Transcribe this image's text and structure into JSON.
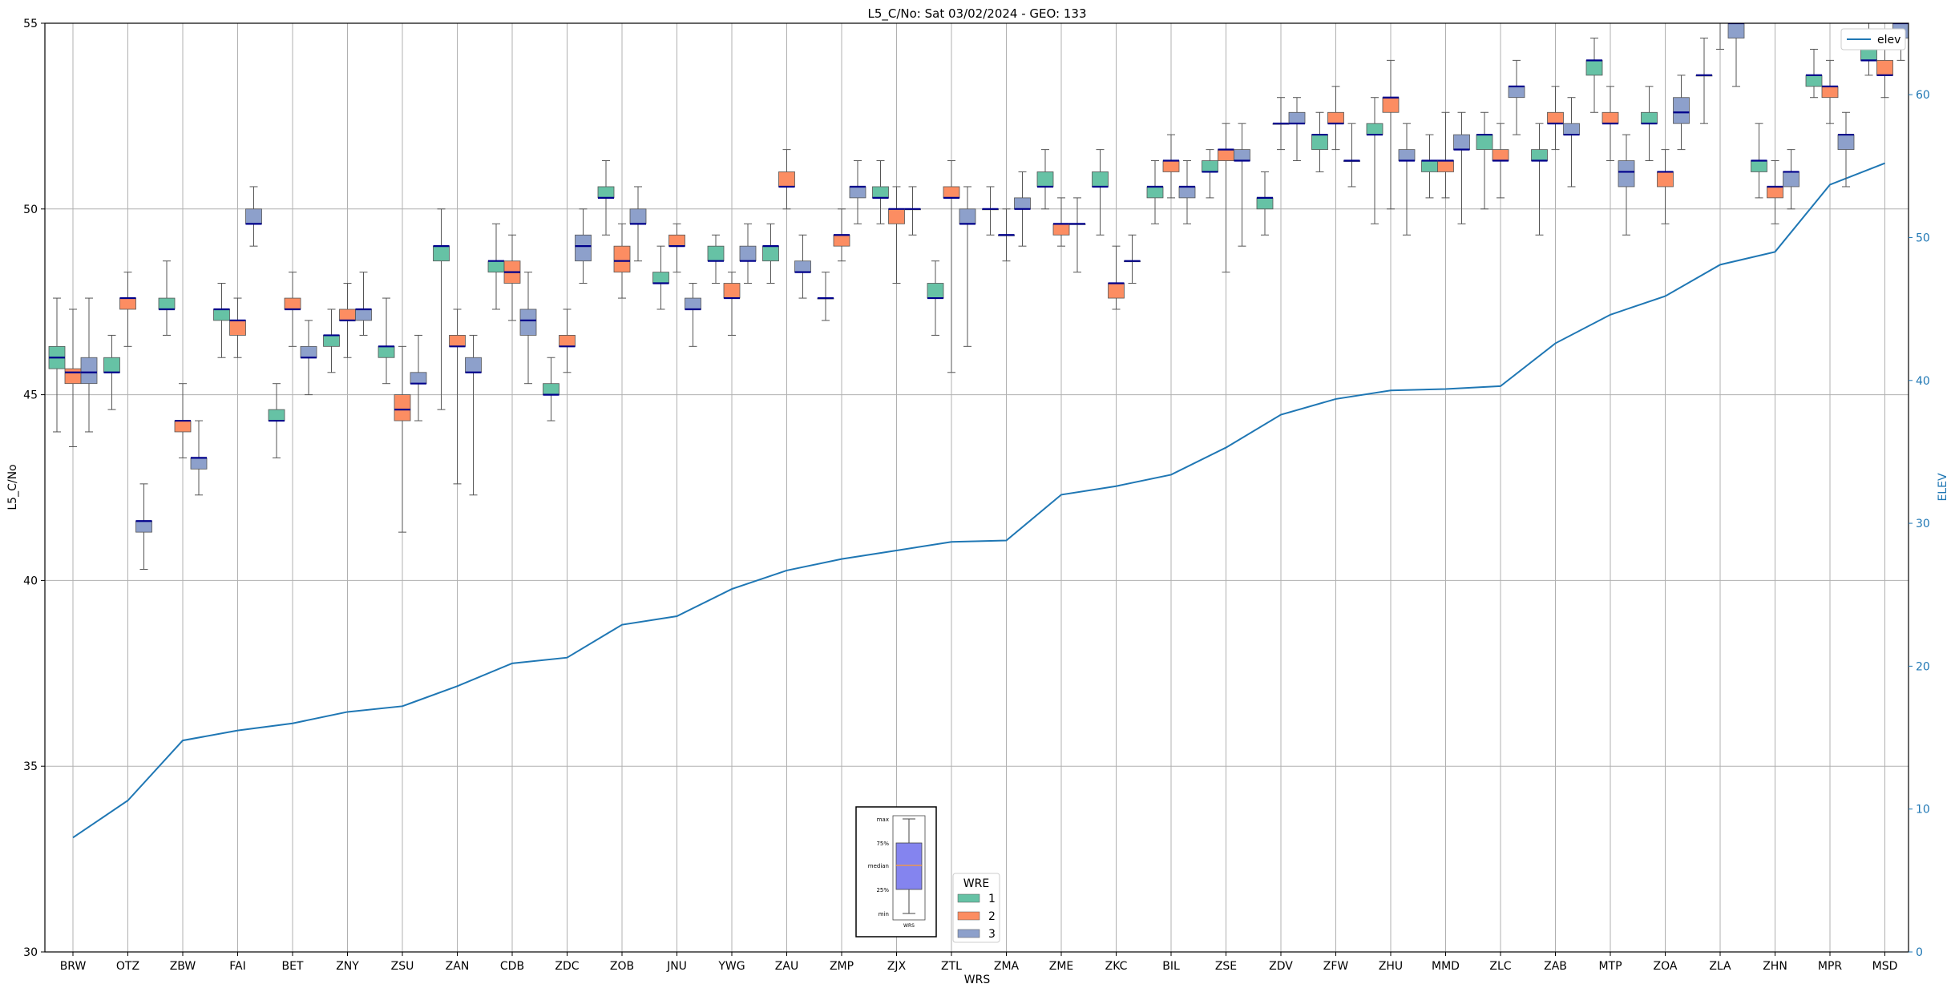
{
  "chart_data": {
    "type": "box",
    "title": "L5_C/No: Sat 03/02/2024 - GEO: 133",
    "xlabel": "WRS",
    "ylabel": "L5_C/No",
    "y2label": "ELEV",
    "ylim": [
      30,
      55
    ],
    "y2lim": [
      0,
      65
    ],
    "yticks": [
      30,
      35,
      40,
      45,
      50,
      55
    ],
    "y2ticks": [
      0,
      10,
      20,
      30,
      40,
      50,
      60
    ],
    "grid": true,
    "categories": [
      "BRW",
      "OTZ",
      "ZBW",
      "FAI",
      "BET",
      "ZNY",
      "ZSU",
      "ZAN",
      "CDB",
      "ZDC",
      "ZOB",
      "JNU",
      "YWG",
      "ZAU",
      "ZMP",
      "ZJX",
      "ZTL",
      "ZMA",
      "ZME",
      "ZKC",
      "BIL",
      "ZSE",
      "ZDV",
      "ZFW",
      "ZHU",
      "MMD",
      "ZLC",
      "ZAB",
      "MTP",
      "ZOA",
      "ZLA",
      "ZHN",
      "MPR",
      "MSD"
    ],
    "wre_colors": {
      "1": "#66c2a5",
      "2": "#fc8d62",
      "3": "#8da0cb"
    },
    "median_color": "#00008b",
    "boxes": [
      {
        "cat": "BRW",
        "wre": 1,
        "min": 44.0,
        "q1": 45.7,
        "med": 46.0,
        "q3": 46.3,
        "max": 47.6
      },
      {
        "cat": "BRW",
        "wre": 2,
        "min": 43.6,
        "q1": 45.3,
        "med": 45.6,
        "q3": 45.7,
        "max": 47.3
      },
      {
        "cat": "BRW",
        "wre": 3,
        "min": 44.0,
        "q1": 45.3,
        "med": 45.6,
        "q3": 46.0,
        "max": 47.6
      },
      {
        "cat": "OTZ",
        "wre": 1,
        "min": 44.6,
        "q1": 45.6,
        "med": 45.6,
        "q3": 46.0,
        "max": 46.6
      },
      {
        "cat": "OTZ",
        "wre": 2,
        "min": 46.3,
        "q1": 47.3,
        "med": 47.6,
        "q3": 47.6,
        "max": 48.3
      },
      {
        "cat": "OTZ",
        "wre": 3,
        "min": 40.3,
        "q1": 41.3,
        "med": 41.6,
        "q3": 41.6,
        "max": 42.6
      },
      {
        "cat": "ZBW",
        "wre": 1,
        "min": 46.6,
        "q1": 47.3,
        "med": 47.3,
        "q3": 47.6,
        "max": 48.6
      },
      {
        "cat": "ZBW",
        "wre": 2,
        "min": 43.3,
        "q1": 44.0,
        "med": 44.3,
        "q3": 44.3,
        "max": 45.3
      },
      {
        "cat": "ZBW",
        "wre": 3,
        "min": 42.3,
        "q1": 43.0,
        "med": 43.3,
        "q3": 43.3,
        "max": 44.3
      },
      {
        "cat": "FAI",
        "wre": 1,
        "min": 46.0,
        "q1": 47.0,
        "med": 47.3,
        "q3": 47.3,
        "max": 48.0
      },
      {
        "cat": "FAI",
        "wre": 2,
        "min": 46.0,
        "q1": 46.6,
        "med": 47.0,
        "q3": 47.0,
        "max": 47.6
      },
      {
        "cat": "FAI",
        "wre": 3,
        "min": 49.0,
        "q1": 49.6,
        "med": 49.6,
        "q3": 50.0,
        "max": 50.6
      },
      {
        "cat": "BET",
        "wre": 1,
        "min": 43.3,
        "q1": 44.3,
        "med": 44.3,
        "q3": 44.6,
        "max": 45.3
      },
      {
        "cat": "BET",
        "wre": 2,
        "min": 46.3,
        "q1": 47.3,
        "med": 47.3,
        "q3": 47.6,
        "max": 48.3
      },
      {
        "cat": "BET",
        "wre": 3,
        "min": 45.0,
        "q1": 46.0,
        "med": 46.0,
        "q3": 46.3,
        "max": 47.0
      },
      {
        "cat": "ZNY",
        "wre": 1,
        "min": 45.6,
        "q1": 46.3,
        "med": 46.6,
        "q3": 46.6,
        "max": 47.3
      },
      {
        "cat": "ZNY",
        "wre": 2,
        "min": 46.0,
        "q1": 47.0,
        "med": 47.0,
        "q3": 47.3,
        "max": 48.0
      },
      {
        "cat": "ZNY",
        "wre": 3,
        "min": 46.6,
        "q1": 47.0,
        "med": 47.3,
        "q3": 47.3,
        "max": 48.3
      },
      {
        "cat": "ZSU",
        "wre": 1,
        "min": 45.3,
        "q1": 46.0,
        "med": 46.3,
        "q3": 46.3,
        "max": 47.6
      },
      {
        "cat": "ZSU",
        "wre": 2,
        "min": 41.3,
        "q1": 44.3,
        "med": 44.6,
        "q3": 45.0,
        "max": 46.3
      },
      {
        "cat": "ZSU",
        "wre": 3,
        "min": 44.3,
        "q1": 45.3,
        "med": 45.3,
        "q3": 45.6,
        "max": 46.6
      },
      {
        "cat": "ZAN",
        "wre": 1,
        "min": 44.6,
        "q1": 48.6,
        "med": 49.0,
        "q3": 49.0,
        "max": 50.0
      },
      {
        "cat": "ZAN",
        "wre": 2,
        "min": 42.6,
        "q1": 46.3,
        "med": 46.3,
        "q3": 46.6,
        "max": 47.3
      },
      {
        "cat": "ZAN",
        "wre": 3,
        "min": 42.3,
        "q1": 45.6,
        "med": 45.6,
        "q3": 46.0,
        "max": 46.6
      },
      {
        "cat": "CDB",
        "wre": 1,
        "min": 47.3,
        "q1": 48.3,
        "med": 48.6,
        "q3": 48.6,
        "max": 49.6
      },
      {
        "cat": "CDB",
        "wre": 2,
        "min": 47.0,
        "q1": 48.0,
        "med": 48.3,
        "q3": 48.6,
        "max": 49.3
      },
      {
        "cat": "CDB",
        "wre": 3,
        "min": 45.3,
        "q1": 46.6,
        "med": 47.0,
        "q3": 47.3,
        "max": 48.3
      },
      {
        "cat": "ZDC",
        "wre": 1,
        "min": 44.3,
        "q1": 45.0,
        "med": 45.0,
        "q3": 45.3,
        "max": 46.0
      },
      {
        "cat": "ZDC",
        "wre": 2,
        "min": 45.6,
        "q1": 46.3,
        "med": 46.3,
        "q3": 46.6,
        "max": 47.3
      },
      {
        "cat": "ZDC",
        "wre": 3,
        "min": 48.0,
        "q1": 48.6,
        "med": 49.0,
        "q3": 49.3,
        "max": 50.0
      },
      {
        "cat": "ZOB",
        "wre": 1,
        "min": 49.3,
        "q1": 50.3,
        "med": 50.3,
        "q3": 50.6,
        "max": 51.3
      },
      {
        "cat": "ZOB",
        "wre": 2,
        "min": 47.6,
        "q1": 48.3,
        "med": 48.6,
        "q3": 49.0,
        "max": 49.6
      },
      {
        "cat": "ZOB",
        "wre": 3,
        "min": 48.6,
        "q1": 49.6,
        "med": 49.6,
        "q3": 50.0,
        "max": 50.6
      },
      {
        "cat": "JNU",
        "wre": 1,
        "min": 47.3,
        "q1": 48.0,
        "med": 48.0,
        "q3": 48.3,
        "max": 49.0
      },
      {
        "cat": "JNU",
        "wre": 2,
        "min": 48.3,
        "q1": 49.0,
        "med": 49.0,
        "q3": 49.3,
        "max": 49.6
      },
      {
        "cat": "JNU",
        "wre": 3,
        "min": 46.3,
        "q1": 47.3,
        "med": 47.3,
        "q3": 47.6,
        "max": 48.0
      },
      {
        "cat": "YWG",
        "wre": 1,
        "min": 48.0,
        "q1": 48.6,
        "med": 48.6,
        "q3": 49.0,
        "max": 49.3
      },
      {
        "cat": "YWG",
        "wre": 2,
        "min": 46.6,
        "q1": 47.6,
        "med": 47.6,
        "q3": 48.0,
        "max": 48.3
      },
      {
        "cat": "YWG",
        "wre": 3,
        "min": 48.0,
        "q1": 48.6,
        "med": 48.6,
        "q3": 49.0,
        "max": 49.6
      },
      {
        "cat": "ZAU",
        "wre": 1,
        "min": 48.0,
        "q1": 48.6,
        "med": 49.0,
        "q3": 49.0,
        "max": 49.6
      },
      {
        "cat": "ZAU",
        "wre": 2,
        "min": 50.0,
        "q1": 50.6,
        "med": 50.6,
        "q3": 51.0,
        "max": 51.6
      },
      {
        "cat": "ZAU",
        "wre": 3,
        "min": 47.6,
        "q1": 48.3,
        "med": 48.3,
        "q3": 48.6,
        "max": 49.3
      },
      {
        "cat": "ZMP",
        "wre": 1,
        "min": 47.0,
        "q1": 47.6,
        "med": 47.6,
        "q3": 47.6,
        "max": 48.3
      },
      {
        "cat": "ZMP",
        "wre": 2,
        "min": 48.6,
        "q1": 49.0,
        "med": 49.3,
        "q3": 49.3,
        "max": 50.0
      },
      {
        "cat": "ZMP",
        "wre": 3,
        "min": 49.6,
        "q1": 50.3,
        "med": 50.6,
        "q3": 50.6,
        "max": 51.3
      },
      {
        "cat": "ZJX",
        "wre": 1,
        "min": 49.6,
        "q1": 50.3,
        "med": 50.3,
        "q3": 50.6,
        "max": 51.3
      },
      {
        "cat": "ZJX",
        "wre": 2,
        "min": 48.0,
        "q1": 49.6,
        "med": 50.0,
        "q3": 50.0,
        "max": 50.6
      },
      {
        "cat": "ZJX",
        "wre": 3,
        "min": 49.3,
        "q1": 50.0,
        "med": 50.0,
        "q3": 50.0,
        "max": 50.6
      },
      {
        "cat": "ZTL",
        "wre": 1,
        "min": 46.6,
        "q1": 47.6,
        "med": 47.6,
        "q3": 48.0,
        "max": 48.6
      },
      {
        "cat": "ZTL",
        "wre": 2,
        "min": 45.6,
        "q1": 50.3,
        "med": 50.3,
        "q3": 50.6,
        "max": 51.3
      },
      {
        "cat": "ZTL",
        "wre": 3,
        "min": 46.3,
        "q1": 49.6,
        "med": 49.6,
        "q3": 50.0,
        "max": 50.6
      },
      {
        "cat": "ZMA",
        "wre": 1,
        "min": 49.3,
        "q1": 50.0,
        "med": 50.0,
        "q3": 50.0,
        "max": 50.6
      },
      {
        "cat": "ZMA",
        "wre": 2,
        "min": 48.6,
        "q1": 49.3,
        "med": 49.3,
        "q3": 49.3,
        "max": 50.0
      },
      {
        "cat": "ZMA",
        "wre": 3,
        "min": 49.0,
        "q1": 50.0,
        "med": 50.0,
        "q3": 50.3,
        "max": 51.0
      },
      {
        "cat": "ZME",
        "wre": 1,
        "min": 50.0,
        "q1": 50.6,
        "med": 50.6,
        "q3": 51.0,
        "max": 51.6
      },
      {
        "cat": "ZME",
        "wre": 2,
        "min": 49.0,
        "q1": 49.3,
        "med": 49.6,
        "q3": 49.6,
        "max": 50.3
      },
      {
        "cat": "ZME",
        "wre": 3,
        "min": 48.3,
        "q1": 49.6,
        "med": 49.6,
        "q3": 49.6,
        "max": 50.3
      },
      {
        "cat": "ZKC",
        "wre": 1,
        "min": 49.3,
        "q1": 50.6,
        "med": 50.6,
        "q3": 51.0,
        "max": 51.6
      },
      {
        "cat": "ZKC",
        "wre": 2,
        "min": 47.3,
        "q1": 47.6,
        "med": 48.0,
        "q3": 48.0,
        "max": 49.0
      },
      {
        "cat": "ZKC",
        "wre": 3,
        "min": 48.0,
        "q1": 48.6,
        "med": 48.6,
        "q3": 48.6,
        "max": 49.3
      },
      {
        "cat": "BIL",
        "wre": 1,
        "min": 49.6,
        "q1": 50.3,
        "med": 50.6,
        "q3": 50.6,
        "max": 51.3
      },
      {
        "cat": "BIL",
        "wre": 2,
        "min": 50.3,
        "q1": 51.0,
        "med": 51.3,
        "q3": 51.3,
        "max": 52.0
      },
      {
        "cat": "BIL",
        "wre": 3,
        "min": 49.6,
        "q1": 50.3,
        "med": 50.6,
        "q3": 50.6,
        "max": 51.3
      },
      {
        "cat": "ZSE",
        "wre": 1,
        "min": 50.3,
        "q1": 51.0,
        "med": 51.0,
        "q3": 51.3,
        "max": 51.6
      },
      {
        "cat": "ZSE",
        "wre": 2,
        "min": 48.3,
        "q1": 51.3,
        "med": 51.6,
        "q3": 51.6,
        "max": 52.3
      },
      {
        "cat": "ZSE",
        "wre": 3,
        "min": 49.0,
        "q1": 51.3,
        "med": 51.3,
        "q3": 51.6,
        "max": 52.3
      },
      {
        "cat": "ZDV",
        "wre": 1,
        "min": 49.3,
        "q1": 50.0,
        "med": 50.3,
        "q3": 50.3,
        "max": 51.0
      },
      {
        "cat": "ZDV",
        "wre": 2,
        "min": 51.6,
        "q1": 52.3,
        "med": 52.3,
        "q3": 52.3,
        "max": 53.0
      },
      {
        "cat": "ZDV",
        "wre": 3,
        "min": 51.3,
        "q1": 52.3,
        "med": 52.3,
        "q3": 52.6,
        "max": 53.0
      },
      {
        "cat": "ZFW",
        "wre": 1,
        "min": 51.0,
        "q1": 51.6,
        "med": 52.0,
        "q3": 52.0,
        "max": 52.6
      },
      {
        "cat": "ZFW",
        "wre": 2,
        "min": 51.6,
        "q1": 52.3,
        "med": 52.3,
        "q3": 52.6,
        "max": 53.3
      },
      {
        "cat": "ZFW",
        "wre": 3,
        "min": 50.6,
        "q1": 51.3,
        "med": 51.3,
        "q3": 51.3,
        "max": 52.3
      },
      {
        "cat": "ZHU",
        "wre": 1,
        "min": 49.6,
        "q1": 52.0,
        "med": 52.0,
        "q3": 52.3,
        "max": 53.0
      },
      {
        "cat": "ZHU",
        "wre": 2,
        "min": 50.0,
        "q1": 52.6,
        "med": 53.0,
        "q3": 53.0,
        "max": 54.0
      },
      {
        "cat": "ZHU",
        "wre": 3,
        "min": 49.3,
        "q1": 51.3,
        "med": 51.3,
        "q3": 51.6,
        "max": 52.3
      },
      {
        "cat": "MMD",
        "wre": 1,
        "min": 50.3,
        "q1": 51.0,
        "med": 51.3,
        "q3": 51.3,
        "max": 52.0
      },
      {
        "cat": "MMD",
        "wre": 2,
        "min": 50.3,
        "q1": 51.0,
        "med": 51.3,
        "q3": 51.3,
        "max": 52.6
      },
      {
        "cat": "MMD",
        "wre": 3,
        "min": 49.6,
        "q1": 51.6,
        "med": 51.6,
        "q3": 52.0,
        "max": 52.6
      },
      {
        "cat": "ZLC",
        "wre": 1,
        "min": 50.0,
        "q1": 51.6,
        "med": 52.0,
        "q3": 52.0,
        "max": 52.6
      },
      {
        "cat": "ZLC",
        "wre": 2,
        "min": 50.3,
        "q1": 51.3,
        "med": 51.3,
        "q3": 51.6,
        "max": 52.3
      },
      {
        "cat": "ZLC",
        "wre": 3,
        "min": 52.0,
        "q1": 53.0,
        "med": 53.3,
        "q3": 53.3,
        "max": 54.0
      },
      {
        "cat": "ZAB",
        "wre": 1,
        "min": 49.3,
        "q1": 51.3,
        "med": 51.3,
        "q3": 51.6,
        "max": 52.3
      },
      {
        "cat": "ZAB",
        "wre": 2,
        "min": 51.6,
        "q1": 52.3,
        "med": 52.3,
        "q3": 52.6,
        "max": 53.3
      },
      {
        "cat": "ZAB",
        "wre": 3,
        "min": 50.6,
        "q1": 52.0,
        "med": 52.0,
        "q3": 52.3,
        "max": 53.0
      },
      {
        "cat": "MTP",
        "wre": 1,
        "min": 52.6,
        "q1": 53.6,
        "med": 54.0,
        "q3": 54.0,
        "max": 54.6
      },
      {
        "cat": "MTP",
        "wre": 2,
        "min": 51.3,
        "q1": 52.3,
        "med": 52.3,
        "q3": 52.6,
        "max": 53.3
      },
      {
        "cat": "MTP",
        "wre": 3,
        "min": 49.3,
        "q1": 50.6,
        "med": 51.0,
        "q3": 51.3,
        "max": 52.0
      },
      {
        "cat": "ZOA",
        "wre": 1,
        "min": 51.3,
        "q1": 52.3,
        "med": 52.3,
        "q3": 52.6,
        "max": 53.3
      },
      {
        "cat": "ZOA",
        "wre": 2,
        "min": 49.6,
        "q1": 50.6,
        "med": 51.0,
        "q3": 51.0,
        "max": 51.6
      },
      {
        "cat": "ZOA",
        "wre": 3,
        "min": 51.6,
        "q1": 52.3,
        "med": 52.6,
        "q3": 53.0,
        "max": 53.6
      },
      {
        "cat": "ZLA",
        "wre": 1,
        "min": 52.3,
        "q1": 53.6,
        "med": 53.6,
        "q3": 53.6,
        "max": 54.6
      },
      {
        "cat": "ZLA",
        "wre": 2,
        "min": 54.3,
        "q1": 55.3,
        "med": 55.3,
        "q3": 55.6,
        "max": 56.3
      },
      {
        "cat": "ZLA",
        "wre": 3,
        "min": 53.3,
        "q1": 54.6,
        "med": 55.0,
        "q3": 55.3,
        "max": 56.0
      },
      {
        "cat": "ZHN",
        "wre": 1,
        "min": 50.3,
        "q1": 51.0,
        "med": 51.3,
        "q3": 51.3,
        "max": 52.3
      },
      {
        "cat": "ZHN",
        "wre": 2,
        "min": 49.6,
        "q1": 50.3,
        "med": 50.6,
        "q3": 50.6,
        "max": 51.3
      },
      {
        "cat": "ZHN",
        "wre": 3,
        "min": 50.0,
        "q1": 50.6,
        "med": 51.0,
        "q3": 51.0,
        "max": 51.6
      },
      {
        "cat": "MPR",
        "wre": 1,
        "min": 53.0,
        "q1": 53.3,
        "med": 53.6,
        "q3": 53.6,
        "max": 54.3
      },
      {
        "cat": "MPR",
        "wre": 2,
        "min": 52.3,
        "q1": 53.0,
        "med": 53.3,
        "q3": 53.3,
        "max": 54.0
      },
      {
        "cat": "MPR",
        "wre": 3,
        "min": 50.6,
        "q1": 51.6,
        "med": 52.0,
        "q3": 52.0,
        "max": 52.6
      },
      {
        "cat": "MSD",
        "wre": 1,
        "min": 53.6,
        "q1": 54.0,
        "med": 54.0,
        "q3": 54.3,
        "max": 55.0
      },
      {
        "cat": "MSD",
        "wre": 2,
        "min": 53.0,
        "q1": 53.6,
        "med": 53.6,
        "q3": 54.0,
        "max": 54.3
      },
      {
        "cat": "MSD",
        "wre": 3,
        "min": 54.0,
        "q1": 54.6,
        "med": 55.0,
        "q3": 55.3,
        "max": 55.6
      }
    ],
    "elev_series": {
      "name": "elev",
      "color": "#1f77b4",
      "values": [
        8.0,
        10.6,
        14.8,
        15.5,
        16.0,
        16.8,
        17.2,
        18.6,
        20.2,
        20.6,
        22.9,
        23.5,
        25.4,
        26.7,
        27.5,
        28.1,
        28.7,
        28.8,
        32.0,
        32.6,
        33.4,
        35.3,
        37.6,
        38.7,
        39.3,
        39.4,
        39.6,
        42.6,
        44.6,
        45.9,
        48.1,
        49.0,
        53.7,
        55.2
      ]
    },
    "legend": {
      "title": "WRE",
      "labels": [
        "1",
        "2",
        "3"
      ],
      "placement": "bottom-center"
    },
    "line_legend_placement": "top-right",
    "inset_key": {
      "labels": [
        "max",
        "75%",
        "median",
        "25%",
        "min"
      ],
      "xlabel": "WRS"
    }
  }
}
